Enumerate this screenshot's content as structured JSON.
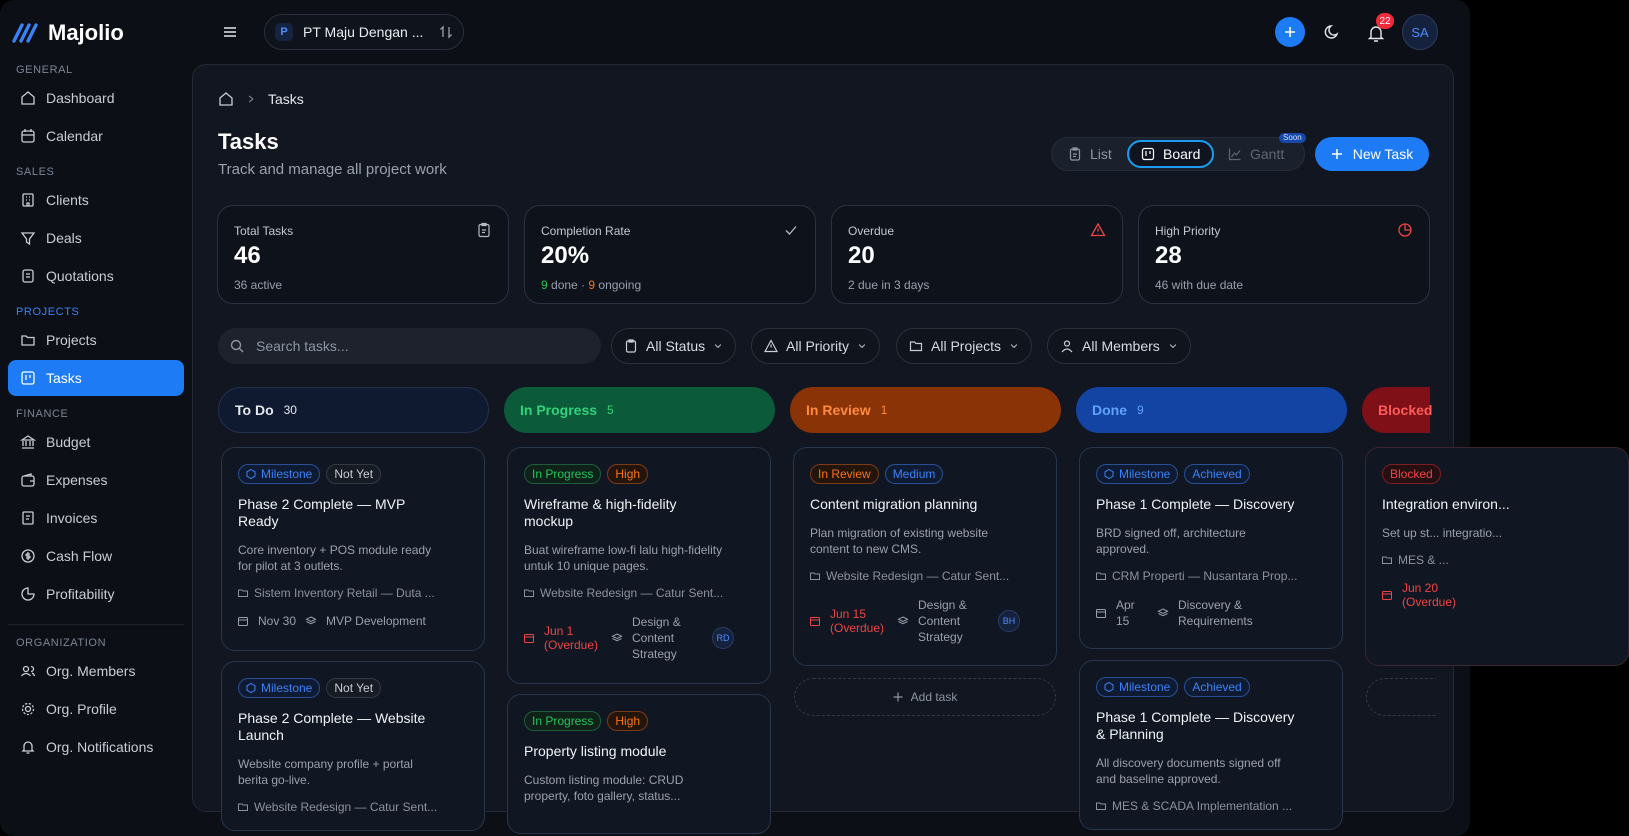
{
  "app": {
    "name": "Majolio"
  },
  "sidebar": {
    "sections": {
      "general": "GENERAL",
      "sales": "SALES",
      "projects": "PROJECTS",
      "finance": "FINANCE",
      "organization": "ORGANIZATION"
    },
    "items": {
      "dashboard": "Dashboard",
      "calendar": "Calendar",
      "clients": "Clients",
      "deals": "Deals",
      "quotations": "Quotations",
      "projects": "Projects",
      "tasks": "Tasks",
      "budget": "Budget",
      "expenses": "Expenses",
      "invoices": "Invoices",
      "cashflow": "Cash Flow",
      "profitability": "Profitability",
      "members": "Org. Members",
      "profile": "Org. Profile",
      "notifications": "Org. Notifications"
    }
  },
  "topbar": {
    "org_badge": "P",
    "org_name": "PT Maju Dengan ...",
    "notifications": "22",
    "avatar": "SA"
  },
  "page": {
    "breadcrumb": "Tasks",
    "title": "Tasks",
    "subtitle": "Track and manage all project work"
  },
  "views": {
    "list": "List",
    "board": "Board",
    "gantt": "Gantt",
    "soon": "Soon",
    "new_task": "New Task"
  },
  "stats": [
    {
      "label": "Total Tasks",
      "value": "46",
      "sub": "36 active"
    },
    {
      "label": "Completion Rate",
      "value": "20%",
      "sub_done": "9",
      "sub_done_label": " done · ",
      "sub_ongoing": "9",
      "sub_ongoing_label": " ongoing"
    },
    {
      "label": "Overdue",
      "value": "20",
      "sub": "2 due in 3 days"
    },
    {
      "label": "High Priority",
      "value": "28",
      "sub": "46 with due date"
    }
  ],
  "filters": {
    "search_placeholder": "Search tasks...",
    "status": "All Status",
    "priority": "All Priority",
    "projects": "All Projects",
    "members": "All Members"
  },
  "columns": [
    {
      "name": "To Do",
      "count": "30",
      "bg": "#0f1a30",
      "fg": "#e6e8ee",
      "border": "#24314c"
    },
    {
      "name": "In Progress",
      "count": "5",
      "bg": "#0b5a3a",
      "fg": "#34d27a"
    },
    {
      "name": "In Review",
      "count": "1",
      "bg": "#8a3307",
      "fg": "#ff8a3d"
    },
    {
      "name": "Done",
      "count": "9",
      "bg": "#1343a3",
      "fg": "#60a5fa"
    },
    {
      "name": "Blocked",
      "count": "",
      "bg": "#7f1017",
      "fg": "#ff5a5a"
    }
  ],
  "cards": {
    "todo1": {
      "tag1": "Milestone",
      "tag2": "Not Yet",
      "title": "Phase 2 Complete — MVP Ready",
      "desc": "Core inventory + POS module ready for pilot at 3 outlets.",
      "project": "Sistem Inventory Retail — Duta ...",
      "date": "Nov 30",
      "phase": "MVP Development"
    },
    "todo2": {
      "tag1": "Milestone",
      "tag2": "Not Yet",
      "title": "Phase 2 Complete — Website Launch",
      "desc": "Website company profile + portal berita go-live.",
      "project": "Website Redesign — Catur Sent..."
    },
    "prog1": {
      "tag1": "In Progress",
      "tag2": "High",
      "title": "Wireframe & high-fidelity mockup",
      "desc": "Buat wireframe low-fi lalu high-fidelity untuk 10 unique pages.",
      "project": "Website Redesign — Catur Sent...",
      "due": "Jun 1 (Overdue)",
      "phase": "Design & Content Strategy",
      "avatar": "RD"
    },
    "prog2": {
      "tag1": "In Progress",
      "tag2": "High",
      "title": "Property listing module",
      "desc": "Custom listing module: CRUD property, foto gallery, status..."
    },
    "rev1": {
      "tag1": "In Review",
      "tag2": "Medium",
      "title": "Content migration planning",
      "desc": "Plan migration of existing website content to new CMS.",
      "project": "Website Redesign — Catur Sent...",
      "due": "Jun 15 (Overdue)",
      "phase": "Design & Content Strategy",
      "avatar": "BH",
      "add": "Add task"
    },
    "done1": {
      "tag1": "Milestone",
      "tag2": "Achieved",
      "title": "Phase 1 Complete — Discovery",
      "desc": "BRD signed off, architecture approved.",
      "project": "CRM Properti — Nusantara Prop...",
      "date": "Apr 15",
      "phase": "Discovery & Requirements"
    },
    "done2": {
      "tag1": "Milestone",
      "tag2": "Achieved",
      "title": "Phase 1 Complete — Discovery & Planning",
      "desc": "All discovery documents signed off and baseline approved.",
      "project": "MES & SCADA Implementation ..."
    },
    "blk1": {
      "tag1": "Blocked",
      "title": "Integration environ...",
      "desc": "Set up st... integratio...",
      "project": "MES & ...",
      "due": "Jun 20 (Overdue)"
    }
  }
}
